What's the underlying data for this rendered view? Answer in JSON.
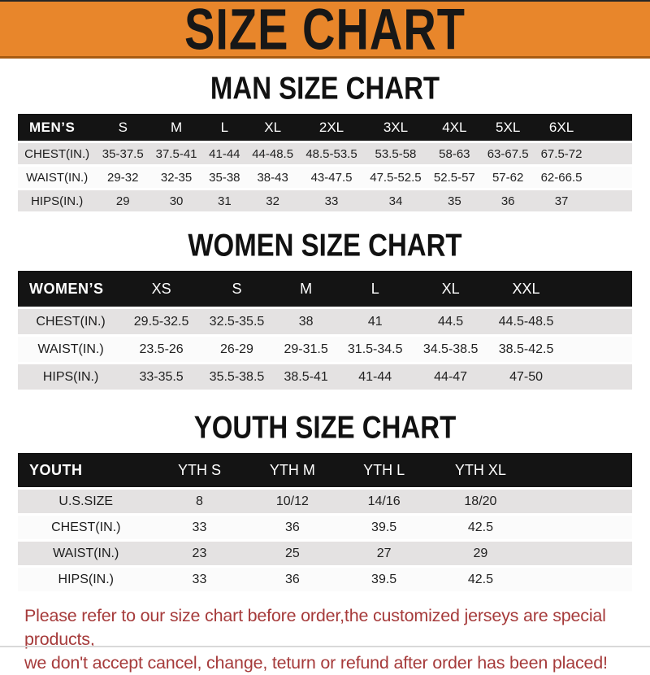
{
  "banner": {
    "title": "SIZE CHART"
  },
  "sections": [
    {
      "id": "men",
      "title": "MAN SIZE CHART",
      "header": [
        "MEN’S",
        "S",
        "M",
        "L",
        "XL",
        "2XL",
        "3XL",
        "4XL",
        "5XL",
        "6XL"
      ],
      "rows": [
        [
          "CHEST(IN.)",
          "35-37.5",
          "37.5-41",
          "41-44",
          "44-48.5",
          "48.5-53.5",
          "53.5-58",
          "58-63",
          "63-67.5",
          "67.5-72"
        ],
        [
          "WAIST(IN.)",
          "29-32",
          "32-35",
          "35-38",
          "38-43",
          "43-47.5",
          "47.5-52.5",
          "52.5-57",
          "57-62",
          "62-66.5"
        ],
        [
          "HIPS(IN.)",
          "29",
          "30",
          "31",
          "32",
          "33",
          "34",
          "35",
          "36",
          "37"
        ]
      ]
    },
    {
      "id": "women",
      "title": "WOMEN SIZE CHART",
      "header": [
        "WOMEN’S",
        "XS",
        "S",
        "M",
        "L",
        "XL",
        "XXL"
      ],
      "rows": [
        [
          "CHEST(IN.)",
          "29.5-32.5",
          "32.5-35.5",
          "38",
          "41",
          "44.5",
          "44.5-48.5"
        ],
        [
          "WAIST(IN.)",
          "23.5-26",
          "26-29",
          "29-31.5",
          "31.5-34.5",
          "34.5-38.5",
          "38.5-42.5"
        ],
        [
          "HIPS(IN.)",
          "33-35.5",
          "35.5-38.5",
          "38.5-41",
          "41-44",
          "44-47",
          "47-50"
        ]
      ]
    },
    {
      "id": "youth",
      "title": "YOUTH SIZE CHART",
      "header": [
        "YOUTH",
        "YTH S",
        "YTH M",
        "YTH L",
        "YTH XL"
      ],
      "rows": [
        [
          "U.S.SIZE",
          "8",
          "10/12",
          "14/16",
          "18/20"
        ],
        [
          "CHEST(IN.)",
          "33",
          "36",
          "39.5",
          "42.5"
        ],
        [
          "WAIST(IN.)",
          "23",
          "25",
          "27",
          "29"
        ],
        [
          "HIPS(IN.)",
          "33",
          "36",
          "39.5",
          "42.5"
        ]
      ]
    }
  ],
  "footer": {
    "line1": "Please refer to our size chart before order,the customized jerseys are special products,",
    "line2": "we don't accept cancel, change, teturn or refund after order has been placed!"
  },
  "colors": {
    "banner_bg": "#E8862B",
    "banner_text": "#171717",
    "table_header_bg": "#141414",
    "table_header_text": "#FFFFFF",
    "row_gray": "#E4E2E2",
    "row_white": "#FBFBFB",
    "disclaimer_red": "#A63B3B"
  }
}
